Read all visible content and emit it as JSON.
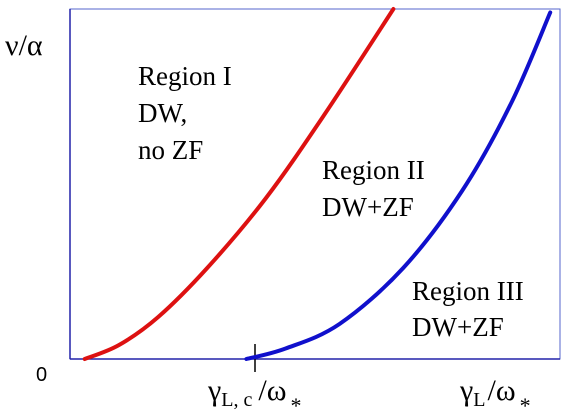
{
  "chart_data": {
    "type": "line",
    "title": "",
    "ylabel": "ν/α",
    "y_tick_labels": [
      "0"
    ],
    "x_tick_labels": [
      {
        "main": "γ",
        "sub": "L, c",
        "slash": "/ω",
        "sub2": "*"
      },
      {
        "main": "γ",
        "sub": "L",
        "slash": "/ω",
        "sub2": "*"
      }
    ],
    "xlim": [
      0,
      1
    ],
    "ylim": [
      0,
      1
    ],
    "series": [
      {
        "color": "#dd1111",
        "x": [
          0.03,
          0.1,
          0.18,
          0.28,
          0.4,
          0.52,
          0.66
        ],
        "y": [
          0.0,
          0.04,
          0.12,
          0.26,
          0.46,
          0.7,
          1.0
        ]
      },
      {
        "color": "#1010cc",
        "x": [
          0.36,
          0.44,
          0.55,
          0.68,
          0.8,
          0.9,
          0.98
        ],
        "y": [
          0.0,
          0.03,
          0.1,
          0.26,
          0.48,
          0.73,
          0.99
        ]
      }
    ],
    "annotations": [
      {
        "lines": [
          "Region I",
          "DW,",
          "no ZF"
        ]
      },
      {
        "lines": [
          "Region II",
          "DW+ZF"
        ]
      },
      {
        "lines": [
          "Region III",
          "DW+ZF"
        ]
      }
    ],
    "colors": {
      "axis": "#2222aa",
      "frame": "#5566cc",
      "text": "#000000"
    }
  }
}
